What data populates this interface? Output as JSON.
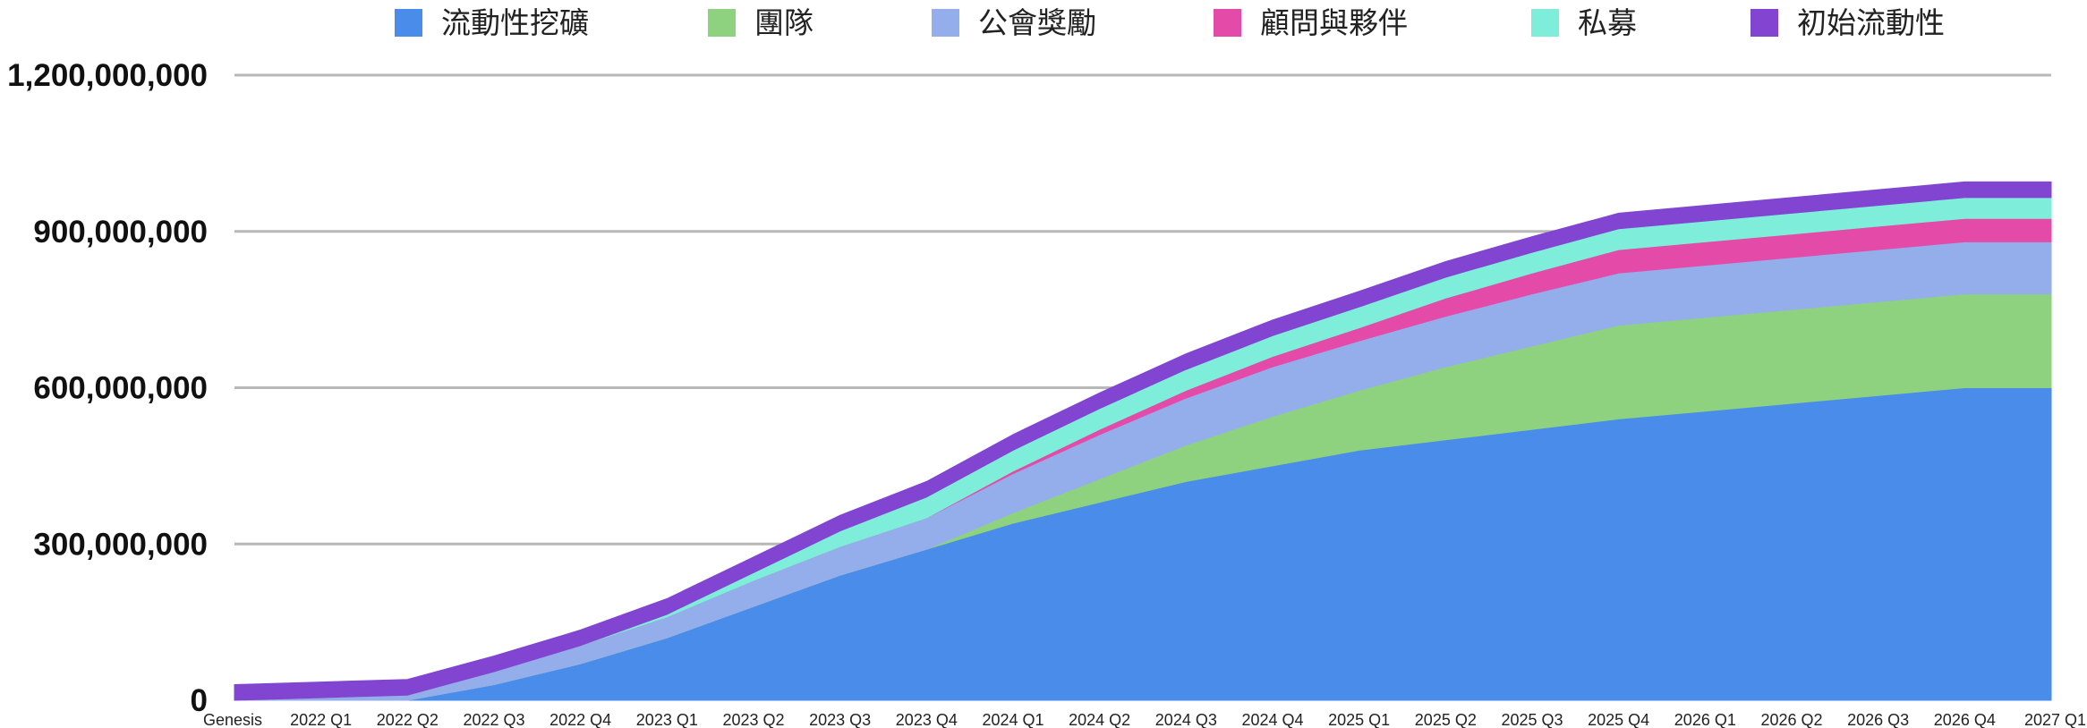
{
  "chart_data": {
    "type": "area",
    "stacked": true,
    "grid": true,
    "legend_position": "top",
    "ylim": [
      0,
      1200000000
    ],
    "yticks": [
      0,
      300000000,
      600000000,
      900000000,
      1200000000
    ],
    "ytick_labels": [
      "0",
      "300,000,000",
      "600,000,000",
      "900,000,000",
      "1,200,000,000"
    ],
    "categories": [
      "Genesis",
      "2022 Q1",
      "2022 Q2",
      "2022 Q3",
      "2022 Q4",
      "2023 Q1",
      "2023 Q2",
      "2023 Q3",
      "2023 Q4",
      "2024 Q1",
      "2024 Q2",
      "2024 Q3",
      "2024 Q4",
      "2025 Q1",
      "2025 Q2",
      "2025 Q3",
      "2025 Q4",
      "2026 Q1",
      "2026 Q2",
      "2026 Q3",
      "2026 Q4",
      "2027 Q1"
    ],
    "series": [
      {
        "name": "流動性挖礦",
        "color": "#4a8ce9",
        "values": [
          0,
          0,
          0,
          30000000,
          70000000,
          120000000,
          180000000,
          240000000,
          290000000,
          340000000,
          380000000,
          420000000,
          450000000,
          480000000,
          500000000,
          520000000,
          540000000,
          555000000,
          570000000,
          585000000,
          600000000,
          600000000
        ]
      },
      {
        "name": "團隊",
        "color": "#8ed27f",
        "values": [
          0,
          0,
          0,
          0,
          0,
          0,
          0,
          0,
          0,
          20000000,
          45000000,
          70000000,
          95000000,
          115000000,
          140000000,
          160000000,
          180000000,
          180000000,
          180000000,
          180000000,
          180000000,
          180000000
        ]
      },
      {
        "name": "公會獎勵",
        "color": "#93aeeb",
        "values": [
          0,
          5000000,
          10000000,
          25000000,
          35000000,
          40000000,
          50000000,
          55000000,
          60000000,
          75000000,
          85000000,
          90000000,
          95000000,
          95000000,
          97000000,
          100000000,
          100000000,
          100000000,
          100000000,
          100000000,
          100000000,
          100000000
        ]
      },
      {
        "name": "顧問與夥伴",
        "color": "#e44ba9",
        "values": [
          0,
          0,
          0,
          0,
          0,
          0,
          0,
          0,
          0,
          5000000,
          10000000,
          15000000,
          20000000,
          25000000,
          35000000,
          40000000,
          45000000,
          45000000,
          45000000,
          45000000,
          45000000,
          45000000
        ]
      },
      {
        "name": "私募",
        "color": "#7eeedb",
        "values": [
          0,
          0,
          0,
          0,
          0,
          5000000,
          15000000,
          30000000,
          40000000,
          40000000,
          40000000,
          40000000,
          40000000,
          40000000,
          40000000,
          40000000,
          40000000,
          40000000,
          40000000,
          40000000,
          40000000,
          40000000
        ]
      },
      {
        "name": "初始流動性",
        "color": "#8145d1",
        "values": [
          30000000,
          30000000,
          30000000,
          30000000,
          30000000,
          30000000,
          30000000,
          30000000,
          30000000,
          30000000,
          30000000,
          30000000,
          30000000,
          30000000,
          30000000,
          30000000,
          30000000,
          30000000,
          30000000,
          30000000,
          30000000,
          30000000
        ]
      }
    ]
  }
}
